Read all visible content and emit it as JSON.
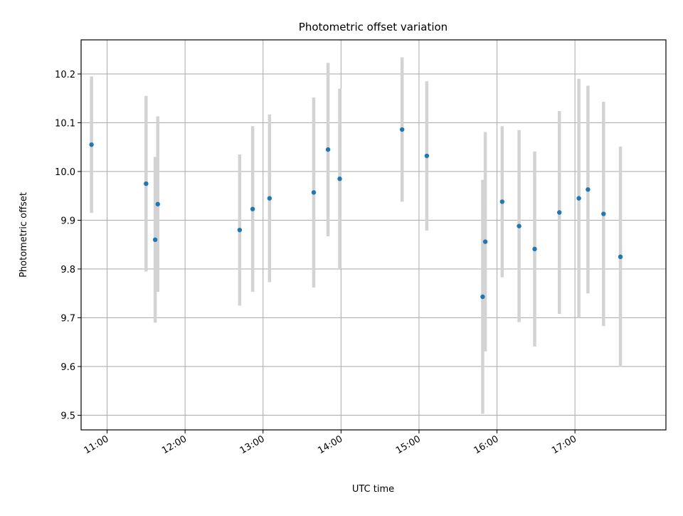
{
  "chart_data": {
    "type": "scatter",
    "title": "Photometric offset variation",
    "xlabel": "UTC time",
    "ylabel": "Photometric offset",
    "x_format": "HH:MM",
    "xlim": [
      "10:40",
      "18:10"
    ],
    "ylim": [
      9.47,
      10.27
    ],
    "xticks": [
      "11:00",
      "12:00",
      "13:00",
      "14:00",
      "15:00",
      "16:00",
      "17:00"
    ],
    "yticks": [
      9.5,
      9.6,
      9.7,
      9.8,
      9.9,
      10.0,
      10.1,
      10.2
    ],
    "grid": true,
    "legend": false,
    "colors": {
      "point": "#1f77b4",
      "errorbar": "#d3d3d3",
      "grid": "#b0b0b0",
      "axes": "#000000"
    },
    "series": [
      {
        "points": [
          {
            "x": "10:48",
            "y": 10.055,
            "err": 0.14
          },
          {
            "x": "11:30",
            "y": 9.975,
            "err": 0.18
          },
          {
            "x": "11:37",
            "y": 9.86,
            "err": 0.17
          },
          {
            "x": "11:39",
            "y": 9.933,
            "err": 0.18
          },
          {
            "x": "12:42",
            "y": 9.88,
            "err": 0.155
          },
          {
            "x": "12:52",
            "y": 9.923,
            "err": 0.17
          },
          {
            "x": "13:05",
            "y": 9.945,
            "err": 0.172
          },
          {
            "x": "13:39",
            "y": 9.957,
            "err": 0.195
          },
          {
            "x": "13:50",
            "y": 10.045,
            "err": 0.178
          },
          {
            "x": "13:59",
            "y": 9.985,
            "err": 0.185
          },
          {
            "x": "14:47",
            "y": 10.086,
            "err": 0.148
          },
          {
            "x": "15:06",
            "y": 10.032,
            "err": 0.153
          },
          {
            "x": "15:49",
            "y": 9.743,
            "err": 0.24
          },
          {
            "x": "15:51",
            "y": 9.856,
            "err": 0.225
          },
          {
            "x": "16:04",
            "y": 9.938,
            "err": 0.155
          },
          {
            "x": "16:17",
            "y": 9.888,
            "err": 0.197
          },
          {
            "x": "16:29",
            "y": 9.841,
            "err": 0.2
          },
          {
            "x": "16:48",
            "y": 9.916,
            "err": 0.208
          },
          {
            "x": "17:03",
            "y": 9.945,
            "err": 0.245
          },
          {
            "x": "17:10",
            "y": 9.963,
            "err": 0.213
          },
          {
            "x": "17:22",
            "y": 9.913,
            "err": 0.23
          },
          {
            "x": "17:35",
            "y": 9.825,
            "err": 0.226
          }
        ]
      }
    ]
  }
}
